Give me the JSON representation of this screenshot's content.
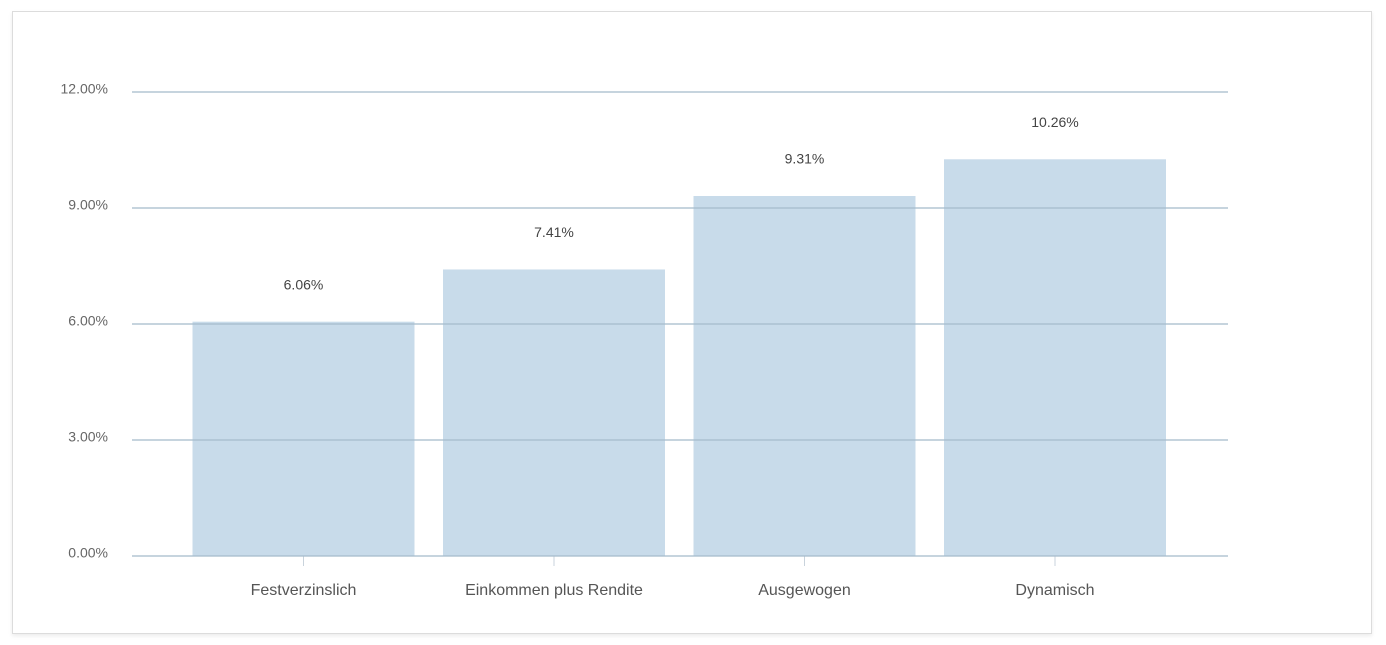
{
  "chart_data": {
    "type": "bar",
    "categories": [
      "Festverzinslich",
      "Einkommen plus Rendite",
      "Ausgewogen",
      "Dynamisch"
    ],
    "values": [
      6.06,
      7.41,
      9.31,
      10.26
    ],
    "value_labels": [
      "6.06%",
      "7.41%",
      "9.31%",
      "10.26%"
    ],
    "color": "#c8dbea",
    "ylim": [
      0,
      12
    ],
    "yticks": [
      {
        "value": 0,
        "label": "0.00%"
      },
      {
        "value": 3,
        "label": "3.00%"
      },
      {
        "value": 6,
        "label": "6.00%"
      },
      {
        "value": 9,
        "label": "9.00%"
      },
      {
        "value": 12,
        "label": "12.00%"
      }
    ],
    "grid": true
  }
}
